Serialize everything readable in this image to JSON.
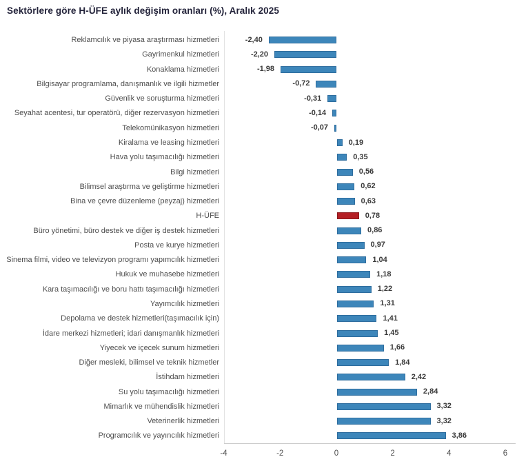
{
  "title": "Sektörlere göre H-ÜFE aylık değişim oranları (%), Aralık 2025",
  "colors": {
    "bar_blue_fill": "#3d86ba",
    "bar_blue_border": "#2e6d9e",
    "bar_red_fill": "#b42025",
    "bar_red_border": "#8c191d",
    "title_text": "#23233a",
    "category_text": "#4d4d4d",
    "value_text": "#3a3a3a",
    "axis_line": "#cdcdcd",
    "plot_border": "#e2e2e2"
  },
  "chart_data": {
    "type": "bar",
    "orientation": "horizontal",
    "title": "Sektörlere göre H-ÜFE aylık değişim oranları (%), Aralık 2025",
    "xlabel": "",
    "ylabel": "",
    "xlim": [
      -4,
      6
    ],
    "grid": false,
    "legend": "none",
    "highlight_category": "H-ÜFE",
    "highlight_index": 12,
    "categories": [
      "Reklamcılık ve piyasa araştırması hizmetleri",
      "Gayrimenkul hizmetleri",
      "Konaklama hizmetleri",
      "Bilgisayar programlama, danışmanlık ve ilgili hizmetler",
      "Güvenlik ve soruşturma hizmetleri",
      "Seyahat acentesi, tur operatörü, diğer rezervasyon hizmetleri",
      "Telekomünikasyon hizmetleri",
      "Kiralama ve leasing hizmetleri",
      "Hava yolu taşımacılığı hizmetleri",
      "Bilgi hizmetleri",
      "Bilimsel araştırma ve geliştirme hizmetleri",
      "Bina ve çevre düzenleme (peyzaj) hizmetleri",
      "H-ÜFE",
      "Büro yönetimi, büro destek ve diğer iş destek hizmetleri",
      "Posta ve kurye hizmetleri",
      "Sinema filmi, video ve televizyon programı yapımcılık hizmetleri",
      "Hukuk ve muhasebe hizmetleri",
      "Kara taşımacılığı ve boru hattı taşımacılığı hizmetleri",
      "Yayımcılık hizmetleri",
      "Depolama ve destek hizmetleri(taşımacılık için)",
      "İdare merkezi hizmetleri; idari danışmanlık hizmetleri",
      "Yiyecek ve içecek sunum hizmetleri",
      "Diğer mesleki, bilimsel ve teknik hizmetler",
      "İstihdam hizmetleri",
      "Su yolu taşımacılığı hizmetleri",
      "Mimarlık ve mühendislik hizmetleri",
      "Veterinerlik hizmetleri",
      "Programcılık ve yayıncılık hizmetleri"
    ],
    "values": [
      -2.4,
      -2.2,
      -1.98,
      -0.72,
      -0.31,
      -0.14,
      -0.07,
      0.19,
      0.35,
      0.56,
      0.62,
      0.63,
      0.78,
      0.86,
      0.97,
      1.04,
      1.18,
      1.22,
      1.31,
      1.41,
      1.45,
      1.66,
      1.84,
      2.42,
      2.84,
      3.32,
      3.32,
      3.86
    ],
    "value_labels": [
      "-2,40",
      "-2,20",
      "-1,98",
      "-0,72",
      "-0,31",
      "-0,14",
      "-0,07",
      "0,19",
      "0,35",
      "0,56",
      "0,62",
      "0,63",
      "0,78",
      "0,86",
      "0,97",
      "1,04",
      "1,18",
      "1,22",
      "1,31",
      "1,41",
      "1,45",
      "1,66",
      "1,84",
      "2,42",
      "2,84",
      "3,32",
      "3,32",
      "3,86"
    ],
    "x_ticks": [
      -4,
      -2,
      0,
      2,
      4,
      6
    ],
    "x_tick_labels": [
      "-4",
      "-2",
      "0",
      "2",
      "4",
      "6"
    ]
  }
}
